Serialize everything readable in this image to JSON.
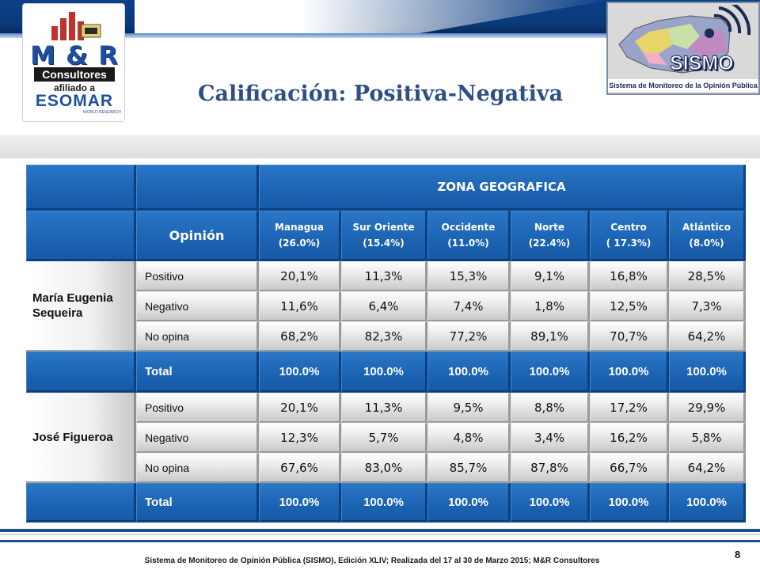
{
  "header": {
    "title": "Calificación: Positiva-Negativa"
  },
  "logo_left": {
    "brand": "M & R",
    "consultores": "Consultores",
    "afiliado": "afiliado a",
    "esomar": "ESOMAR",
    "world_research": "WORLD RESEARCH"
  },
  "logo_right": {
    "word": "SISMO",
    "subtitle": "Sistema de Monitoreo de la Opinión Pública"
  },
  "table": {
    "zone_header": "ZONA GEOGRAFICA",
    "opinion_header": "Opinión",
    "columns": [
      {
        "name": "Managua",
        "share": "(26.0%)"
      },
      {
        "name": "Sur Oriente",
        "share": "(15.4%)"
      },
      {
        "name": "Occidente",
        "share": "(11.0%)"
      },
      {
        "name": "Norte",
        "share": "(22.4%)"
      },
      {
        "name": "Centro",
        "share": "( 17.3%)"
      },
      {
        "name": "Atlántico",
        "share": "(8.0%)"
      }
    ],
    "groups": [
      {
        "name": "María Eugenia Sequeira",
        "rows": [
          {
            "label": "Positivo",
            "values": [
              "20,1%",
              "11,3%",
              "15,3%",
              "9,1%",
              "16,8%",
              "28,5%"
            ]
          },
          {
            "label": "Negativo",
            "values": [
              "11,6%",
              "6,4%",
              "7,4%",
              "1,8%",
              "12,5%",
              "7,3%"
            ]
          },
          {
            "label": "No opina",
            "values": [
              "68,2%",
              "82,3%",
              "77,2%",
              "89,1%",
              "70,7%",
              "64,2%"
            ]
          }
        ],
        "total_label": "Total",
        "totals": [
          "100.0%",
          "100.0%",
          "100.0%",
          "100.0%",
          "100.0%",
          "100.0%"
        ]
      },
      {
        "name": "José Figueroa",
        "rows": [
          {
            "label": "Positivo",
            "values": [
              "20,1%",
              "11,3%",
              "9,5%",
              "8,8%",
              "17,2%",
              "29,9%"
            ]
          },
          {
            "label": "Negativo",
            "values": [
              "12,3%",
              "5,7%",
              "4,8%",
              "3,4%",
              "16,2%",
              "5,8%"
            ]
          },
          {
            "label": "No opina",
            "values": [
              "67,6%",
              "83,0%",
              "85,7%",
              "87,8%",
              "66,7%",
              "64,2%"
            ]
          }
        ],
        "total_label": "Total",
        "totals": [
          "100.0%",
          "100.0%",
          "100.0%",
          "100.0%",
          "100.0%",
          "100.0%"
        ]
      }
    ]
  },
  "footer": {
    "text": "Sistema de Monitoreo de Opinión Pública (SISMO), Edición XLIV; Realizada del 17 al 30 de Marzo 2015; M&R Consultores",
    "page_number": "8"
  },
  "colors": {
    "header_blue": "#0b3f86",
    "cell_blue": "#1c63b3",
    "title_blue": "#2d4f85"
  }
}
